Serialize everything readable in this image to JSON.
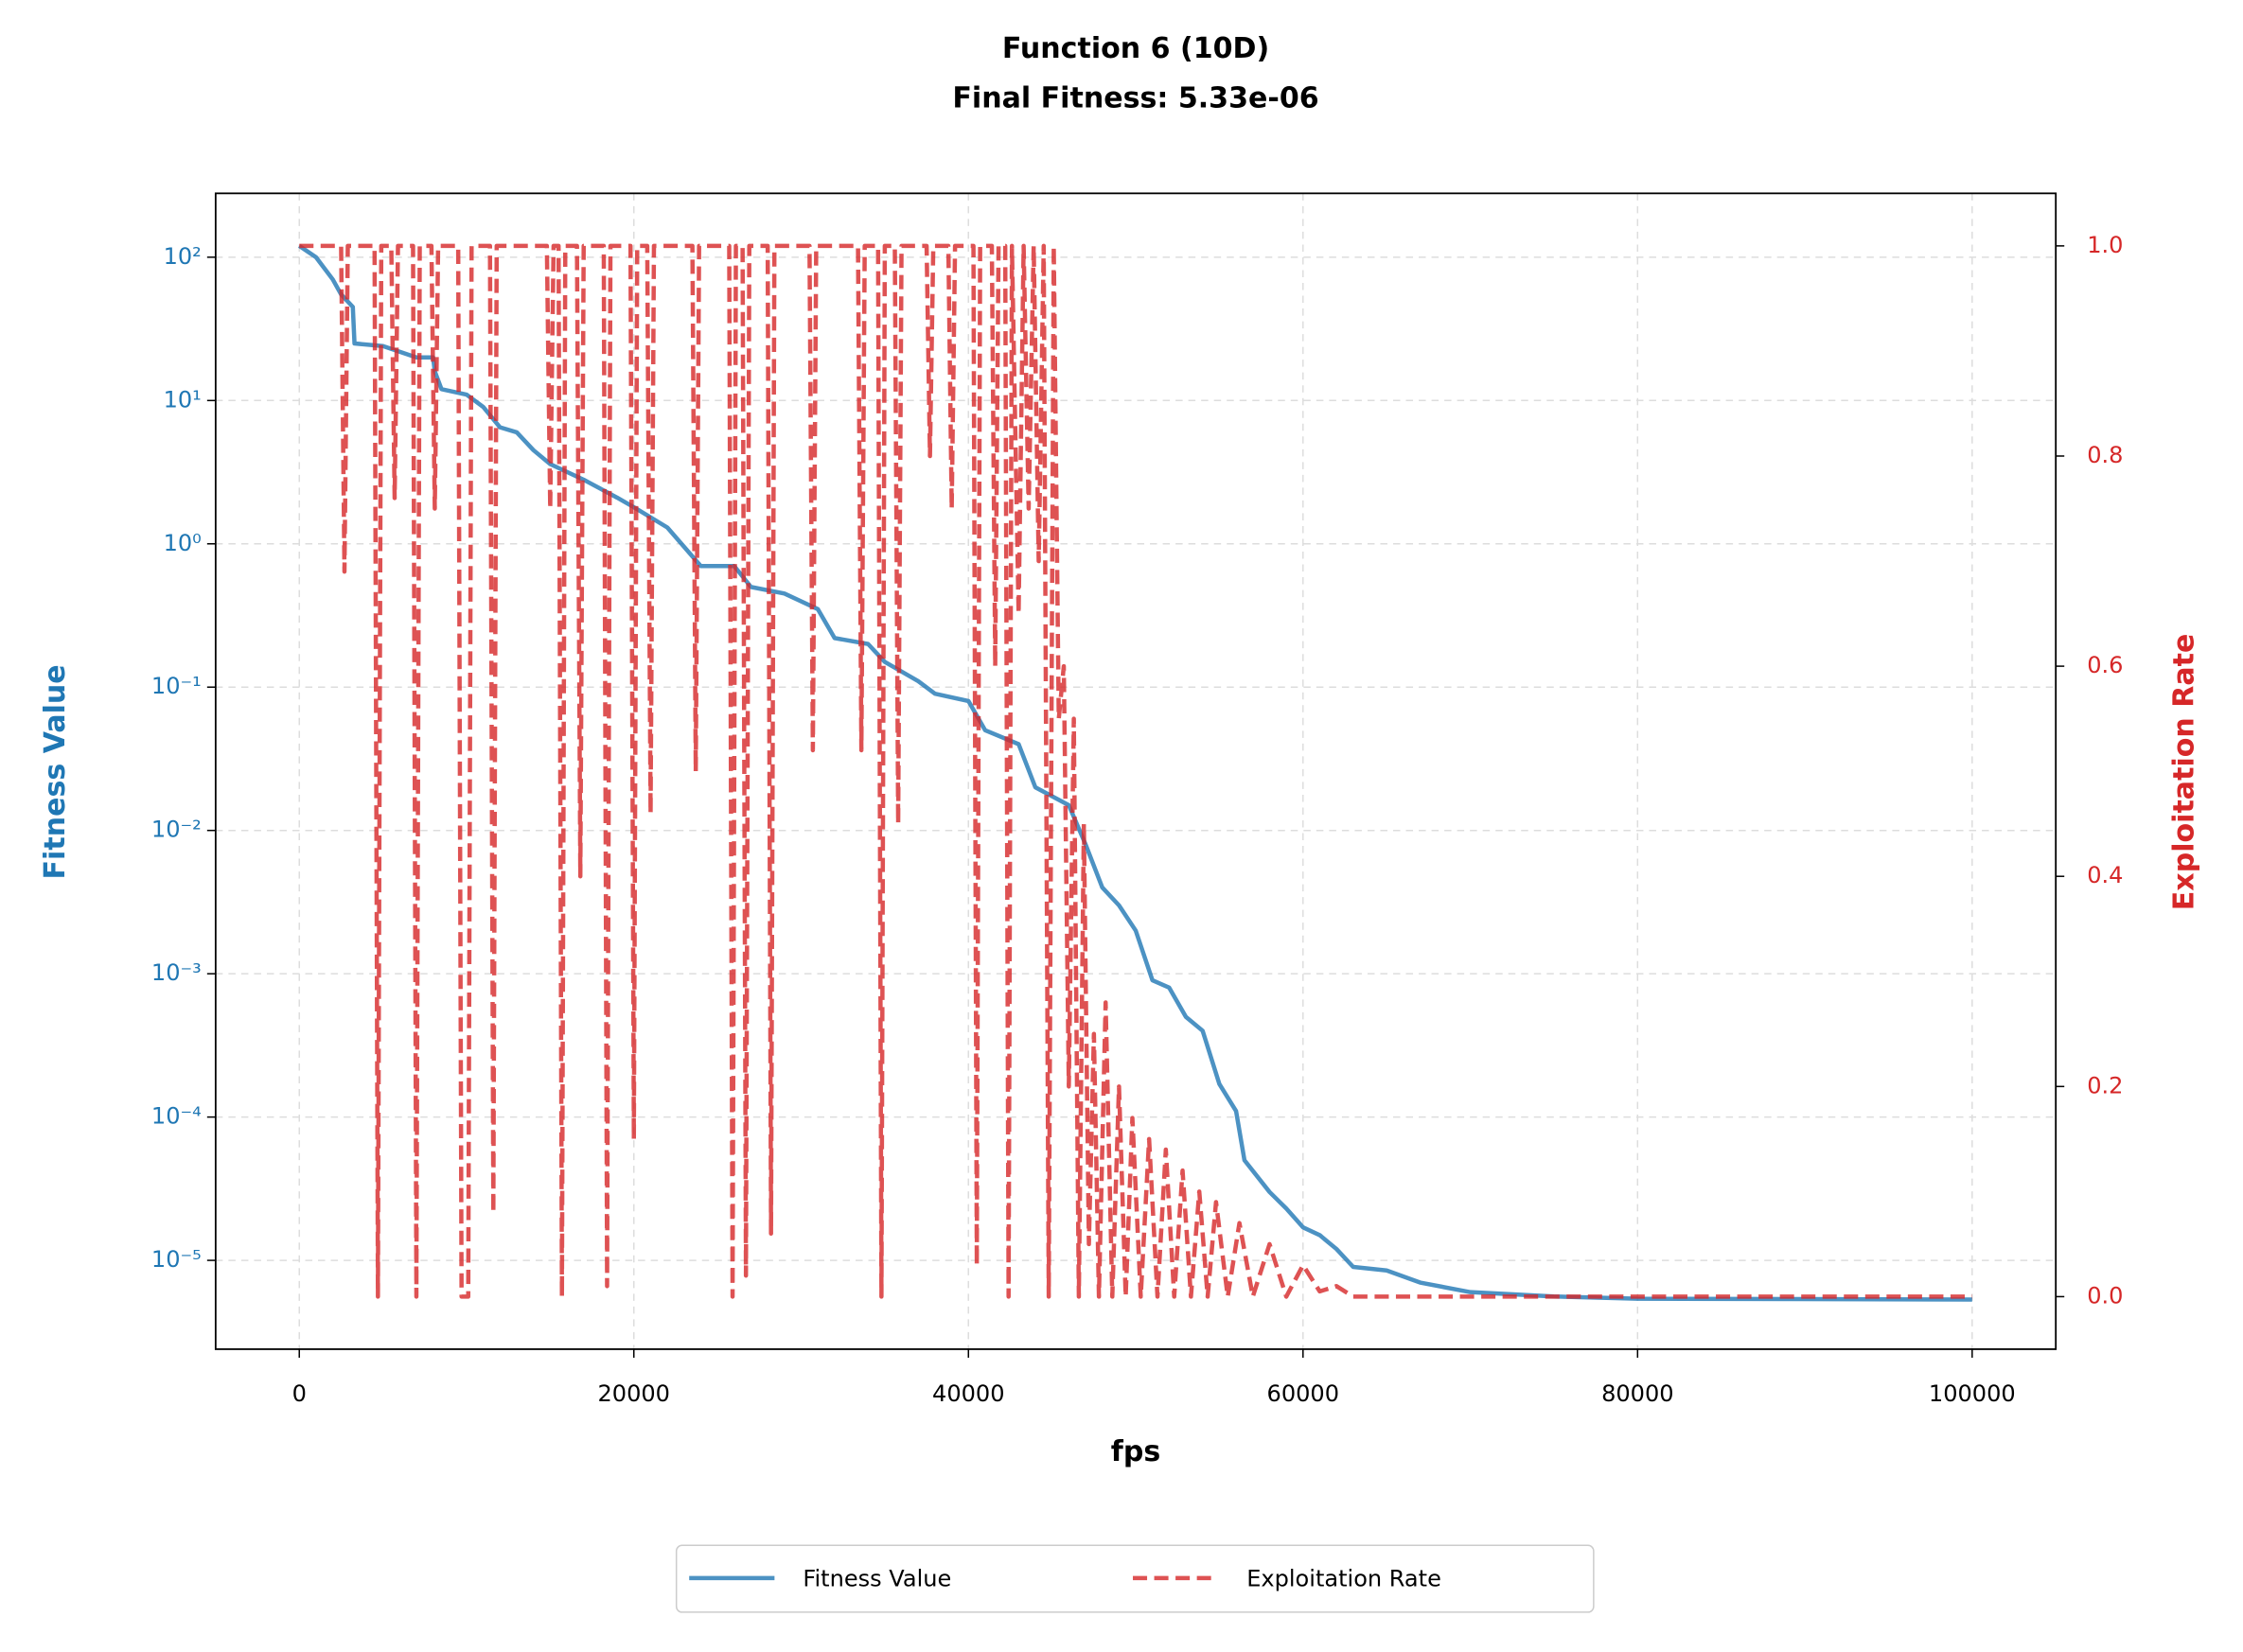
{
  "chart_data": {
    "type": "line",
    "title": "Function 6 (10D)",
    "subtitle": "Final Fitness: 5.33e-06",
    "xlabel": "fps",
    "ylabel": "Fitness Value",
    "y2label": "Exploitation Rate",
    "xlim": [
      -5000,
      105000
    ],
    "xticks": [
      0,
      20000,
      40000,
      60000,
      80000,
      100000
    ],
    "ylim": [
      279,
      2.4e-06
    ],
    "log_y": true,
    "yticks": [
      {
        "value": 100,
        "label": "10²"
      },
      {
        "value": 10,
        "label": "10¹"
      },
      {
        "value": 1,
        "label": "10⁰"
      },
      {
        "value": 0.1,
        "label": "10⁻¹"
      },
      {
        "value": 0.01,
        "label": "10⁻²"
      },
      {
        "value": 0.001,
        "label": "10⁻³"
      },
      {
        "value": 0.0001,
        "label": "10⁻⁴"
      },
      {
        "value": 1e-05,
        "label": "10⁻⁵"
      }
    ],
    "y2lim": [
      -0.05,
      1.05
    ],
    "y2ticks": [
      {
        "value": 0,
        "label": "0.0"
      },
      0.2,
      0.4,
      0.6,
      0.8,
      {
        "value": 1,
        "label": "1.0"
      }
    ],
    "grid": true,
    "legend": "bottom",
    "series": [
      {
        "name": "Fitness Value",
        "color": "#1f77b4",
        "axis": "y",
        "x": [
          0,
          1000,
          2000,
          2500,
          3200,
          3300,
          5000,
          7000,
          8000,
          8100,
          8500,
          10000,
          11000,
          12000,
          13000,
          14000,
          15000,
          17000,
          19000,
          20000,
          22000,
          24000,
          26000,
          27000,
          29000,
          31000,
          32000,
          34000,
          35000,
          37000,
          38000,
          40000,
          41000,
          43000,
          44000,
          46000,
          47000,
          48000,
          49000,
          50000,
          51000,
          52000,
          53000,
          54000,
          55000,
          56000,
          56500,
          58000,
          59000,
          60000,
          61000,
          62000,
          63000,
          65000,
          67000,
          70000,
          75000,
          80000,
          100000
        ],
        "values": [
          120,
          100,
          70,
          55,
          45,
          25,
          24,
          20,
          20,
          16,
          12,
          11,
          9,
          6.5,
          6,
          4.5,
          3.6,
          2.8,
          2.1,
          1.8,
          1.3,
          0.7,
          0.7,
          0.5,
          0.45,
          0.35,
          0.22,
          0.2,
          0.15,
          0.11,
          0.09,
          0.08,
          0.05,
          0.04,
          0.02,
          0.015,
          0.008,
          0.004,
          0.003,
          0.002,
          0.0009,
          0.0008,
          0.0005,
          0.0004,
          0.00017,
          0.00011,
          5e-05,
          3e-05,
          2.3e-05,
          1.7e-05,
          1.5e-05,
          1.2e-05,
          9e-06,
          8.5e-06,
          7e-06,
          6e-06,
          5.6e-06,
          5.4e-06,
          5.33e-06
        ]
      },
      {
        "name": "Exploitation Rate",
        "color": "#d62728",
        "axis": "y2",
        "x": [
          0,
          2500,
          2700,
          2900,
          4500,
          4700,
          4900,
          5500,
          5700,
          5900,
          6800,
          7000,
          7200,
          7900,
          8100,
          8300,
          9500,
          9700,
          10100,
          10300,
          11400,
          11600,
          11800,
          14800,
          15000,
          15200,
          15500,
          15700,
          15900,
          16600,
          16800,
          17000,
          18200,
          18400,
          18600,
          19800,
          20000,
          20200,
          20800,
          21000,
          21200,
          23500,
          23700,
          23900,
          25700,
          25900,
          26100,
          26500,
          26700,
          26900,
          28000,
          28200,
          28400,
          30500,
          30700,
          30900,
          33400,
          33600,
          33800,
          34600,
          34800,
          35000,
          35600,
          35800,
          36000,
          37500,
          37700,
          37900,
          38800,
          39000,
          39200,
          40300,
          40500,
          40700,
          41400,
          41600,
          41800,
          42200,
          42400,
          42600,
          43000,
          43300,
          43600,
          43900,
          44200,
          44500,
          44800,
          45100,
          45400,
          45700,
          46000,
          46300,
          46600,
          46900,
          47200,
          47500,
          47800,
          48200,
          48600,
          49000,
          49400,
          49800,
          50300,
          50800,
          51300,
          51800,
          52300,
          52800,
          53300,
          53800,
          54300,
          54800,
          55500,
          56200,
          57000,
          58000,
          59000,
          60000,
          61000,
          62000,
          63000,
          100000
        ],
        "values": [
          1,
          1,
          0.69,
          1,
          1,
          0,
          1,
          1,
          0.76,
          1,
          1,
          0,
          1,
          1,
          0.75,
          1,
          1,
          0,
          0,
          1,
          1,
          0.08,
          1,
          1,
          0.75,
          1,
          1,
          0,
          1,
          1,
          0.4,
          1,
          1,
          0.01,
          1,
          1,
          0.15,
          1,
          1,
          0.46,
          1,
          1,
          0.5,
          1,
          1,
          0,
          1,
          1,
          0.02,
          1,
          1,
          0.06,
          1,
          1,
          0.52,
          1,
          1,
          0.52,
          1,
          1,
          0,
          1,
          1,
          0.45,
          1,
          1,
          0.8,
          1,
          1,
          0.75,
          1,
          1,
          0.03,
          1,
          1,
          0.6,
          1,
          1,
          0,
          1,
          0.65,
          1,
          0.75,
          1,
          0.7,
          1,
          0,
          1,
          0.55,
          0.6,
          0.2,
          0.55,
          0,
          0.45,
          0.05,
          0.25,
          0,
          0.28,
          0,
          0.2,
          0,
          0.17,
          0,
          0.15,
          0,
          0.14,
          0,
          0.12,
          0,
          0.1,
          0,
          0.09,
          0,
          0.07,
          0,
          0.05,
          0,
          0.03,
          0.005,
          0.01,
          0,
          0
        ]
      }
    ]
  }
}
